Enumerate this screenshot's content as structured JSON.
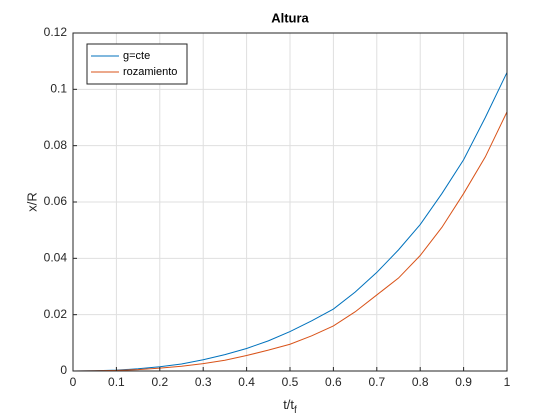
{
  "chart_data": {
    "type": "line",
    "title": "Altura",
    "xlabel": "t/t",
    "xlabel_subscript": "f",
    "ylabel": "x/R",
    "x": [
      0,
      0.05,
      0.1,
      0.15,
      0.2,
      0.25,
      0.3,
      0.35,
      0.4,
      0.45,
      0.5,
      0.55,
      0.6,
      0.65,
      0.7,
      0.75,
      0.8,
      0.85,
      0.9,
      0.95,
      1
    ],
    "series": [
      {
        "name": "g=cte",
        "color": "#0072bd",
        "values": [
          0,
          0.0001,
          0.0003,
          0.0008,
          0.0015,
          0.0025,
          0.004,
          0.0058,
          0.008,
          0.0107,
          0.014,
          0.0178,
          0.022,
          0.028,
          0.035,
          0.043,
          0.052,
          0.063,
          0.075,
          0.09,
          0.106
        ]
      },
      {
        "name": "rozamiento",
        "color": "#d95319",
        "values": [
          0,
          0.0001,
          0.0002,
          0.0005,
          0.001,
          0.0017,
          0.0026,
          0.0038,
          0.0055,
          0.0074,
          0.0095,
          0.0125,
          0.016,
          0.021,
          0.027,
          0.033,
          0.041,
          0.051,
          0.063,
          0.076,
          0.092
        ]
      }
    ],
    "xlim": [
      0,
      1
    ],
    "xticks": [
      0,
      0.1,
      0.2,
      0.3,
      0.4,
      0.5,
      0.6,
      0.7,
      0.8,
      0.9,
      1
    ],
    "ylim": [
      0,
      0.12
    ],
    "yticks": [
      0,
      0.02,
      0.04,
      0.06,
      0.08,
      0.1,
      0.12
    ],
    "grid": true,
    "legend": "upper-left"
  }
}
